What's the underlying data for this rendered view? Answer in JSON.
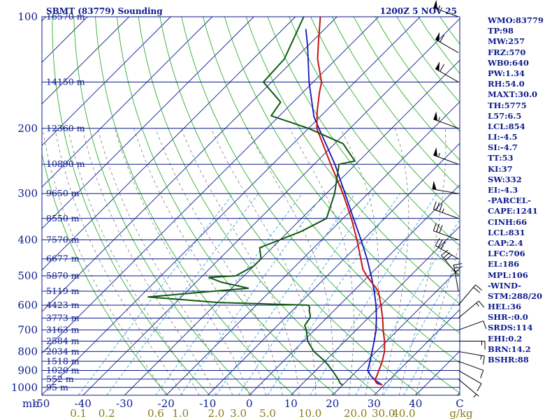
{
  "header": {
    "station": "SBMT (83779) Sounding",
    "time": "1200Z  5 NOV 25"
  },
  "indices": [
    "WMO:83779",
    "TP:98",
    "MW:257",
    "FRZ:570",
    "WB0:640",
    "PW:1.34",
    "RH:54.0",
    "MAXT:30.0",
    "TH:5775",
    "L57:6.5",
    "LCL:854",
    "LI:-4.5",
    "SI:-4.7",
    "TT:53",
    "KI:37",
    "SW:332",
    "EI:-4.3",
    "-PARCEL-",
    "CAPE:1241",
    "CINH:66",
    "LCL:831",
    "CAP:2.4",
    "LFC:706",
    "EL:186",
    "MPL:106",
    "-WIND-",
    "STM:288/20",
    "HEL:36",
    "SHR-:0.0",
    "SRDS:114",
    "EHI:0.2",
    "BRN:14.2",
    "BSHR:88"
  ],
  "colors": {
    "isobar": "#0b1a8c",
    "isotherm": "#0b1a8c",
    "dry_adiabat": "#2fae2f",
    "moist_adiabat": "#555555",
    "mixing_ratio": "#39a6d6",
    "temperature": "#c81414",
    "dewpoint": "#0f5a0f",
    "parcel": "#1414b4",
    "mixing_label": "#8c7a14",
    "wind_barb": "#000000"
  },
  "chart_data": {
    "type": "skew-t",
    "x_axis": {
      "start_label": "mb",
      "ticks": [
        "-50",
        "-40",
        "-30",
        "-20",
        "-10",
        "0",
        "10",
        "20",
        "30",
        "40",
        "C"
      ],
      "tick_values": [
        -50,
        -40,
        -30,
        -20,
        -10,
        0,
        10,
        20,
        30,
        40
      ]
    },
    "y_axis": {
      "pressure_ticks": [
        100,
        200,
        300,
        400,
        500,
        600,
        700,
        800,
        900,
        1000
      ],
      "scale": "log"
    },
    "heights": [
      {
        "p": 100,
        "label": "16570 m"
      },
      {
        "p": 150,
        "label": "14150 m"
      },
      {
        "p": 200,
        "label": "12360 m"
      },
      {
        "p": 250,
        "label": "10890 m"
      },
      {
        "p": 300,
        "label": "9650 m"
      },
      {
        "p": 350,
        "label": "8550 m"
      },
      {
        "p": 400,
        "label": "7570 m"
      },
      {
        "p": 450,
        "label": "6677 m"
      },
      {
        "p": 500,
        "label": "5870 m"
      },
      {
        "p": 550,
        "label": "5119 m"
      },
      {
        "p": 600,
        "label": "4423 m"
      },
      {
        "p": 650,
        "label": "3773 m"
      },
      {
        "p": 700,
        "label": "3163 m"
      },
      {
        "p": 750,
        "label": "2584 m"
      },
      {
        "p": 800,
        "label": "2034 m"
      },
      {
        "p": 850,
        "label": "1518 m"
      },
      {
        "p": 900,
        "label": "1020 m"
      },
      {
        "p": 950,
        "label": "552 m"
      },
      {
        "p": 1000,
        "label": "95 m"
      }
    ],
    "mixing_ratio_labels": [
      "0.1",
      "0.2",
      "0.6",
      "1.0",
      "2.0",
      "3.0",
      "5.0",
      "10.0",
      "20.0",
      "30.0",
      "40.0",
      "g/kg"
    ],
    "mixing_ratio_values": [
      0.1,
      0.2,
      0.6,
      1.0,
      2.0,
      3.0,
      5.0,
      10.0,
      20.0,
      30.0,
      40.0
    ],
    "temperature": [
      [
        985,
        29.5
      ],
      [
        975,
        27.8
      ],
      [
        955,
        26.5
      ],
      [
        930,
        26.0
      ],
      [
        900,
        25.2
      ],
      [
        850,
        23.8
      ],
      [
        800,
        22.0
      ],
      [
        750,
        19.5
      ],
      [
        700,
        16.5
      ],
      [
        650,
        13.5
      ],
      [
        600,
        10.0
      ],
      [
        550,
        6.0
      ],
      [
        500,
        -0.5
      ],
      [
        480,
        -3.0
      ],
      [
        450,
        -6.0
      ],
      [
        400,
        -11.5
      ],
      [
        350,
        -18.0
      ],
      [
        300,
        -26.0
      ],
      [
        250,
        -36.0
      ],
      [
        200,
        -48.0
      ],
      [
        180,
        -52.0
      ],
      [
        160,
        -56.0
      ],
      [
        150,
        -58.0
      ],
      [
        130,
        -64.5
      ],
      [
        115,
        -69.0
      ],
      [
        100,
        -74.0
      ]
    ],
    "dewpoint": [
      [
        985,
        20.0
      ],
      [
        975,
        19.0
      ],
      [
        950,
        17.5
      ],
      [
        900,
        14.0
      ],
      [
        850,
        10.0
      ],
      [
        800,
        5.0
      ],
      [
        750,
        1.0
      ],
      [
        700,
        -2.0
      ],
      [
        680,
        -3.5
      ],
      [
        650,
        -4.0
      ],
      [
        640,
        -4.5
      ],
      [
        620,
        -6.0
      ],
      [
        610,
        -6.5
      ],
      [
        600,
        -7.5
      ],
      [
        590,
        -30.0
      ],
      [
        570,
        -48.0
      ],
      [
        540,
        -26.0
      ],
      [
        520,
        -34.0
      ],
      [
        505,
        -38.0
      ],
      [
        500,
        -32.0
      ],
      [
        470,
        -30.0
      ],
      [
        450,
        -30.0
      ],
      [
        420,
        -33.0
      ],
      [
        380,
        -27.0
      ],
      [
        350,
        -24.0
      ],
      [
        300,
        -28.0
      ],
      [
        250,
        -34.0
      ],
      [
        245,
        -31.0
      ],
      [
        220,
        -38.0
      ],
      [
        200,
        -50.0
      ],
      [
        185,
        -62.0
      ],
      [
        170,
        -63.0
      ],
      [
        150,
        -72.0
      ],
      [
        130,
        -72.5
      ],
      [
        100,
        -78.0
      ]
    ],
    "parcel": [
      [
        985,
        29.5
      ],
      [
        960,
        27.0
      ],
      [
        930,
        24.5
      ],
      [
        900,
        22.5
      ],
      [
        854,
        21.0
      ],
      [
        800,
        19.0
      ],
      [
        750,
        17.0
      ],
      [
        700,
        14.8
      ],
      [
        650,
        12.0
      ],
      [
        600,
        8.8
      ],
      [
        550,
        5.0
      ],
      [
        500,
        0.6
      ],
      [
        450,
        -4.5
      ],
      [
        400,
        -10.5
      ],
      [
        350,
        -17.5
      ],
      [
        300,
        -25.5
      ],
      [
        250,
        -35.0
      ],
      [
        200,
        -47.5
      ],
      [
        186,
        -51.5
      ],
      [
        150,
        -61.0
      ],
      [
        120,
        -70.0
      ],
      [
        108,
        -74.5
      ]
    ],
    "wind": [
      {
        "p": 950,
        "dir": 130,
        "spd": 5
      },
      {
        "p": 900,
        "dir": 120,
        "spd": 10
      },
      {
        "p": 850,
        "dir": 110,
        "spd": 10
      },
      {
        "p": 800,
        "dir": 100,
        "spd": 15
      },
      {
        "p": 750,
        "dir": 90,
        "spd": 15
      },
      {
        "p": 700,
        "dir": 70,
        "spd": 10
      },
      {
        "p": 650,
        "dir": 50,
        "spd": 15
      },
      {
        "p": 600,
        "dir": 40,
        "spd": 20
      },
      {
        "p": 550,
        "dir": 350,
        "spd": 25
      },
      {
        "p": 500,
        "dir": 320,
        "spd": 30
      },
      {
        "p": 450,
        "dir": 300,
        "spd": 30
      },
      {
        "p": 400,
        "dir": 290,
        "spd": 30
      },
      {
        "p": 350,
        "dir": 290,
        "spd": 35
      },
      {
        "p": 300,
        "dir": 280,
        "spd": 50
      },
      {
        "p": 250,
        "dir": 290,
        "spd": 55
      },
      {
        "p": 200,
        "dir": 290,
        "spd": 55
      },
      {
        "p": 150,
        "dir": 300,
        "spd": 60
      },
      {
        "p": 125,
        "dir": 300,
        "spd": 60
      },
      {
        "p": 100,
        "dir": 290,
        "spd": 55
      }
    ],
    "grid": true
  }
}
